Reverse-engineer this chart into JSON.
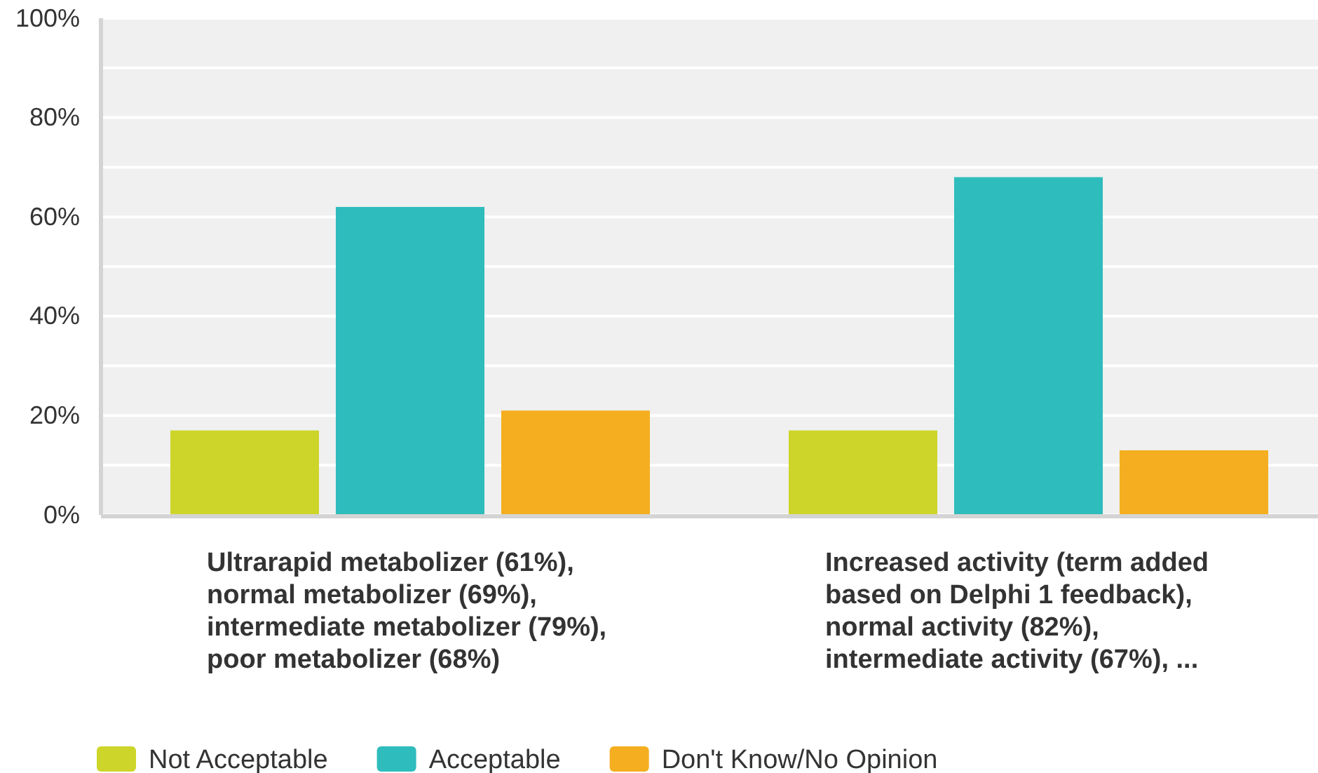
{
  "chart_data": {
    "type": "bar",
    "categories": [
      "Ultrarapid metabolizer (61%), normal metabolizer (69%), intermediate metabolizer (79%), poor metabolizer (68%)",
      "Increased activity (term added based on Delphi 1 feedback), normal activity (82%), intermediate activity (67%), ..."
    ],
    "series": [
      {
        "name": "Not Acceptable",
        "color": "#cdd52a",
        "values": [
          17,
          17
        ]
      },
      {
        "name": "Acceptable",
        "color": "#2fbcbd",
        "values": [
          62,
          68
        ]
      },
      {
        "name": "Don't Know/No Opinion",
        "color": "#f5ae1f",
        "values": [
          21,
          13
        ]
      }
    ],
    "ylim": [
      0,
      100
    ],
    "yticks": [
      {
        "value": 0,
        "label": "0%"
      },
      {
        "value": 10,
        "label": null
      },
      {
        "value": 20,
        "label": "20%"
      },
      {
        "value": 30,
        "label": null
      },
      {
        "value": 40,
        "label": "40%"
      },
      {
        "value": 50,
        "label": null
      },
      {
        "value": 60,
        "label": "60%"
      },
      {
        "value": 70,
        "label": null
      },
      {
        "value": 80,
        "label": "80%"
      },
      {
        "value": 90,
        "label": null
      },
      {
        "value": 100,
        "label": "100%"
      }
    ],
    "grid": "y",
    "legend": "bottom"
  }
}
